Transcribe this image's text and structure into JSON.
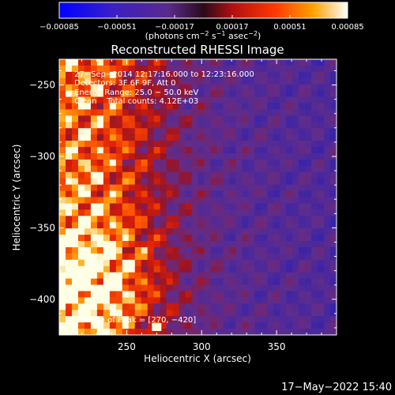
{
  "chart_data": {
    "type": "heatmap",
    "title": "Reconstructed RHESSI Image",
    "xlabel": "Heliocentric X (arcsec)",
    "ylabel": "Heliocentric Y (arcsec)",
    "xlim": [
      205,
      390
    ],
    "ylim": [
      -425,
      -232
    ],
    "x_ticks": [
      250,
      300,
      350
    ],
    "y_ticks": [
      -250,
      -300,
      -350,
      -400
    ],
    "x_tick_labels": [
      "250",
      "300",
      "350"
    ],
    "y_tick_labels": [
      "−250",
      "−300",
      "−350",
      "−400"
    ],
    "colorbar": {
      "ticks": [
        -0.00085,
        -0.00051,
        -0.00017,
        0.00017,
        0.00051,
        0.00085
      ],
      "tick_labels": [
        "−0.00085",
        "−0.00051",
        "−0.00017",
        "0.00017",
        "0.00051",
        "0.00085"
      ],
      "unit_label_main": "(photons cm",
      "unit_exp1": "−2",
      "unit_mid1": " s",
      "unit_exp2": "−1",
      "unit_mid2": " asec",
      "unit_exp3": "−2",
      "unit_end": ")"
    },
    "annotations": [
      "27−Sep−2014 12:17:16.000 to 12:23:16.000",
      "Detectors: 3F 6F 9F, Att 0",
      "Energy Range: 25.0 − 50.0 keV",
      "Clean    Total counts: 4.12E+03"
    ],
    "peak_label": "Position of Peak = [270, −420]",
    "peak_position": [
      270,
      -420
    ],
    "colors": {
      "background": "#000000",
      "low": "#0000ff",
      "mid": "#6a2f9f",
      "high": "#ff5a00",
      "max": "#ffffff"
    }
  },
  "footer": {
    "timestamp": "17−May−2022 15:40"
  }
}
